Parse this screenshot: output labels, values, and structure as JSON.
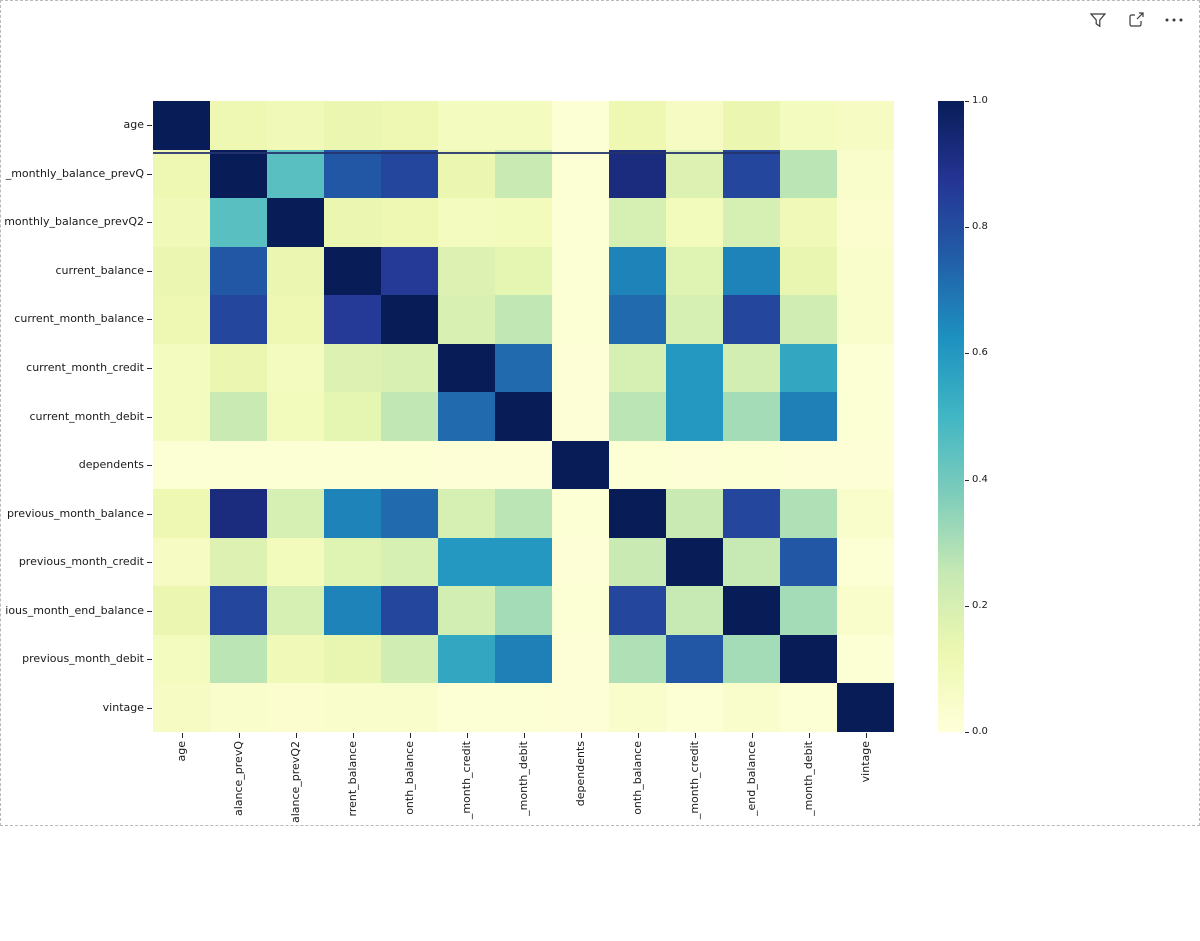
{
  "visual_header": {
    "icons": [
      {
        "name": "filter-icon"
      },
      {
        "name": "focus-mode-icon"
      },
      {
        "name": "more-options-icon"
      }
    ]
  },
  "colors": {
    "background": "#ffffff",
    "border": "#b9b9b9",
    "icon": "#3a3a3a",
    "label_text": "#1a1a1a",
    "tick": "#262626"
  },
  "chart_data": {
    "type": "heatmap",
    "title": "",
    "colormap": "YlGnBu",
    "colormap_stops": [
      "#ffffd9",
      "#edf8b1",
      "#c7e9b4",
      "#7fcdbb",
      "#41b6c4",
      "#1d91c0",
      "#225ea8",
      "#253494",
      "#081d58"
    ],
    "row_labels": [
      "age",
      "_monthly_balance_prevQ",
      "monthly_balance_prevQ2",
      "current_balance",
      "current_month_balance",
      "current_month_credit",
      "current_month_debit",
      "dependents",
      "previous_month_balance",
      "previous_month_credit",
      "ious_month_end_balance",
      "previous_month_debit",
      "vintage"
    ],
    "col_labels": [
      "age",
      "alance_prevQ",
      "alance_prevQ2",
      "rrent_balance",
      "onth_balance",
      "_month_credit",
      "_month_debit",
      "dependents",
      "onth_balance",
      "_month_credit",
      "_end_balance",
      "_month_debit",
      "vintage"
    ],
    "matrix": [
      [
        1.0,
        0.12,
        0.1,
        0.13,
        0.12,
        0.08,
        0.08,
        0.02,
        0.12,
        0.07,
        0.13,
        0.08,
        0.07
      ],
      [
        0.12,
        1.0,
        0.45,
        0.77,
        0.82,
        0.13,
        0.24,
        0.02,
        0.92,
        0.18,
        0.82,
        0.27,
        0.04
      ],
      [
        0.1,
        0.45,
        1.0,
        0.13,
        0.12,
        0.08,
        0.09,
        0.02,
        0.2,
        0.09,
        0.2,
        0.1,
        0.03
      ],
      [
        0.13,
        0.77,
        0.13,
        1.0,
        0.86,
        0.18,
        0.15,
        0.02,
        0.66,
        0.17,
        0.66,
        0.14,
        0.04
      ],
      [
        0.12,
        0.82,
        0.12,
        0.86,
        1.0,
        0.19,
        0.26,
        0.02,
        0.72,
        0.2,
        0.82,
        0.22,
        0.04
      ],
      [
        0.08,
        0.13,
        0.08,
        0.18,
        0.19,
        1.0,
        0.72,
        0.01,
        0.2,
        0.6,
        0.21,
        0.55,
        0.02
      ],
      [
        0.08,
        0.24,
        0.09,
        0.15,
        0.26,
        0.72,
        1.0,
        0.01,
        0.27,
        0.6,
        0.31,
        0.67,
        0.02
      ],
      [
        0.02,
        0.02,
        0.02,
        0.02,
        0.02,
        0.01,
        0.01,
        1.0,
        0.02,
        0.01,
        0.02,
        0.01,
        0.01
      ],
      [
        0.12,
        0.92,
        0.2,
        0.66,
        0.72,
        0.2,
        0.27,
        0.02,
        1.0,
        0.24,
        0.82,
        0.29,
        0.04
      ],
      [
        0.07,
        0.18,
        0.09,
        0.17,
        0.2,
        0.6,
        0.6,
        0.01,
        0.24,
        1.0,
        0.25,
        0.77,
        0.02
      ],
      [
        0.13,
        0.82,
        0.2,
        0.66,
        0.82,
        0.21,
        0.31,
        0.02,
        0.82,
        0.25,
        1.0,
        0.31,
        0.04
      ],
      [
        0.08,
        0.27,
        0.1,
        0.14,
        0.22,
        0.55,
        0.67,
        0.01,
        0.29,
        0.77,
        0.31,
        1.0,
        0.02
      ],
      [
        0.07,
        0.04,
        0.03,
        0.04,
        0.04,
        0.02,
        0.02,
        0.01,
        0.04,
        0.02,
        0.04,
        0.02,
        1.0
      ]
    ],
    "colorbar": {
      "min": 0.0,
      "max": 1.0,
      "tick_labels": [
        "1.0",
        "0.8",
        "0.6",
        "0.4",
        "0.2",
        "0.0"
      ]
    },
    "legend_position": "right",
    "grid": false
  }
}
